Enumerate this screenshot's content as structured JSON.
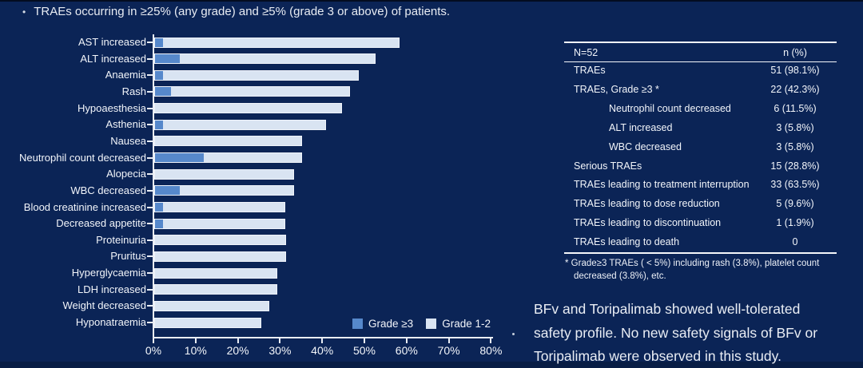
{
  "slide": {
    "bullet_glyph": "•",
    "bullet_text": "TRAEs occurring in ≥25% (any grade) and ≥5% (grade 3 or above) of patients.",
    "stray_period": "."
  },
  "colors": {
    "background": "#0B2456",
    "grade3_blue": "#5688CB",
    "grade12_light": "#D9E4F2",
    "axis": "#E9EDF4",
    "text": "#F2F5FA"
  },
  "chart_data": {
    "type": "bar",
    "orientation": "horizontal",
    "stacked": true,
    "categories": [
      "AST increased",
      "ALT increased",
      "Anaemia",
      "Rash",
      "Hypoaesthesia",
      "Asthenia",
      "Nausea",
      "Neutrophil count decreased",
      "Alopecia",
      "WBC decreased",
      "Blood creatinine increased",
      "Decreased appetite",
      "Proteinuria",
      "Pruritus",
      "Hyperglycaemia",
      "LDH increased",
      "Weight decreased",
      "Hyponatraemia"
    ],
    "series": [
      {
        "name": "Grade ≥3",
        "color": "#5688CB",
        "values": [
          1.9,
          5.8,
          1.9,
          3.8,
          0,
          1.9,
          0,
          11.5,
          0,
          5.8,
          1.9,
          1.9,
          0,
          0,
          0,
          0,
          0,
          0
        ]
      },
      {
        "name": "Grade 1-2",
        "color": "#D9E4F2",
        "values": [
          55.8,
          46.2,
          46.2,
          42.3,
          44.2,
          38.5,
          34.6,
          23.1,
          32.7,
          26.9,
          28.8,
          28.8,
          30.8,
          30.8,
          28.8,
          28.8,
          26.9,
          25.0
        ]
      }
    ],
    "totals_any_grade": [
      57.7,
      51.9,
      48.1,
      46.2,
      44.2,
      40.4,
      34.6,
      34.6,
      32.7,
      32.7,
      30.8,
      30.8,
      30.8,
      30.8,
      28.8,
      28.8,
      26.9,
      25.0
    ],
    "x_ticks": [
      "0%",
      "10%",
      "20%",
      "30%",
      "40%",
      "50%",
      "60%",
      "70%",
      "80%"
    ],
    "xlim": [
      0,
      80
    ],
    "xlabel": "",
    "ylabel": "",
    "grid": false,
    "legend_position": "inside-bottom-right"
  },
  "table": {
    "header": {
      "left": "N=52",
      "right": "n (%)"
    },
    "rows": [
      {
        "label": "TRAEs",
        "value": "51 (98.1%)",
        "indent": false
      },
      {
        "label": "TRAEs, Grade ≥3 *",
        "value": "22 (42.3%)",
        "indent": false
      },
      {
        "label": "Neutrophil count decreased",
        "value": "6 (11.5%)",
        "indent": true
      },
      {
        "label": "ALT increased",
        "value": "3 (5.8%)",
        "indent": true
      },
      {
        "label": "WBC decreased",
        "value": "3 (5.8%)",
        "indent": true
      },
      {
        "label": "Serious TRAEs",
        "value": "15 (28.8%)",
        "indent": false
      },
      {
        "label": "TRAEs leading to treatment interruption",
        "value": "33 (63.5%)",
        "indent": false
      },
      {
        "label": "TRAEs leading to dose reduction",
        "value": "5 (9.6%)",
        "indent": false
      },
      {
        "label": "TRAEs leading to discontinuation",
        "value": "1 (1.9%)",
        "indent": false
      },
      {
        "label": "TRAEs leading to death",
        "value": "0",
        "indent": false
      }
    ],
    "footnote_line1": "* Grade≥3 TRAEs ( < 5%) including rash (3.8%), platelet count",
    "footnote_line2": "decreased (3.8%), etc."
  },
  "summary": {
    "lines": [
      "BFv and Toripalimab showed well-tolerated",
      "safety profile. No new safety signals of BFv or",
      "Toripalimab were observed in this study."
    ]
  }
}
